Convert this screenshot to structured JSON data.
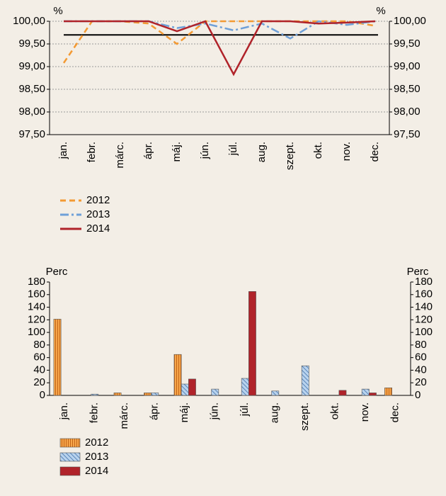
{
  "chart_data": [
    {
      "type": "line",
      "y_label": "%",
      "categories": [
        "jan.",
        "febr.",
        "márc.",
        "ápr.",
        "máj.",
        "jún.",
        "júl.",
        "aug.",
        "szept.",
        "okt.",
        "nov.",
        "dec."
      ],
      "ylim": [
        97.5,
        100
      ],
      "yticks": [
        {
          "value": 97.5,
          "label": "97,50"
        },
        {
          "value": 98,
          "label": "98,00"
        },
        {
          "value": 98.5,
          "label": "98,50"
        },
        {
          "value": 99,
          "label": "99,00"
        },
        {
          "value": 99.5,
          "label": "99,50"
        },
        {
          "value": 100,
          "label": "100,00"
        }
      ],
      "grid": true,
      "reference_lines": [
        {
          "value": 99.7,
          "color": "#000000"
        }
      ],
      "series": [
        {
          "name": "2012",
          "color": "#f39a34",
          "dash": "8 5",
          "values": [
            99.08,
            100,
            100,
            99.95,
            99.5,
            100,
            100,
            100,
            100,
            100,
            100,
            99.9
          ]
        },
        {
          "name": "2013",
          "color": "#6fa0d8",
          "dash": "12 4 3 4",
          "values": [
            100,
            100,
            100,
            100,
            99.85,
            99.95,
            99.8,
            99.95,
            99.62,
            100,
            99.92,
            100
          ]
        },
        {
          "name": "2014",
          "color": "#b0232a",
          "dash": "",
          "values": [
            100,
            100,
            100,
            100,
            99.78,
            100,
            98.83,
            100,
            100,
            99.95,
            99.97,
            100
          ]
        }
      ]
    },
    {
      "type": "bar",
      "y_label": "Perc",
      "categories": [
        "jan.",
        "febr.",
        "márc.",
        "ápr.",
        "máj.",
        "jún.",
        "júl.",
        "aug.",
        "szept.",
        "okt.",
        "nov.",
        "dec."
      ],
      "ylim": [
        0,
        180
      ],
      "yticks": [
        0,
        20,
        40,
        60,
        80,
        100,
        120,
        140,
        160,
        180
      ],
      "grid": false,
      "series": [
        {
          "name": "2012",
          "color": "#f7a64a",
          "hatch": "vertical",
          "values": [
            121,
            0,
            4,
            4,
            65,
            0,
            0,
            0,
            0,
            0,
            0,
            12
          ]
        },
        {
          "name": "2013",
          "color": "#b9d3ee",
          "hatch": "diagonal",
          "values": [
            0,
            2,
            0,
            4,
            18,
            10,
            27,
            7,
            47,
            0,
            10,
            0
          ]
        },
        {
          "name": "2014",
          "color": "#b0232a",
          "hatch": "none",
          "values": [
            0,
            0,
            0,
            0,
            26,
            0,
            165,
            0,
            0,
            8,
            4,
            0
          ]
        }
      ]
    }
  ]
}
